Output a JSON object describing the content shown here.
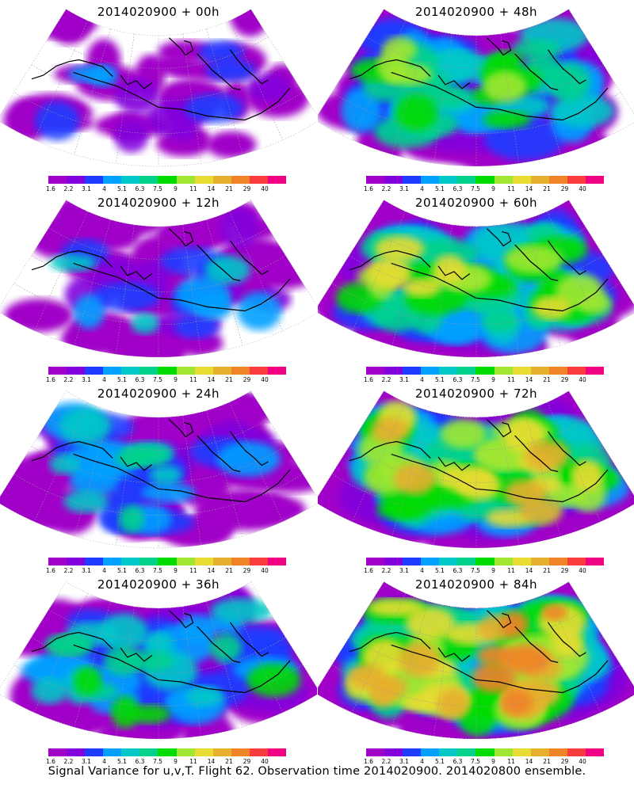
{
  "palette": [
    "#a000c8",
    "#8200dc",
    "#1e3cff",
    "#00a0ff",
    "#00c8c8",
    "#00d28c",
    "#00dc00",
    "#a0e632",
    "#e6dc32",
    "#e6af2d",
    "#f08228",
    "#fa3c3c",
    "#f00082"
  ],
  "colorbar_labels": [
    "1.6",
    "2.2",
    "3.1",
    "4",
    "5.1",
    "6.3",
    "7.5",
    "9",
    "11",
    "14",
    "21",
    "29",
    "40"
  ],
  "panels": [
    {
      "title": "2014020900 + 00h",
      "level": 0
    },
    {
      "title": "2014020900 + 48h",
      "level": 4
    },
    {
      "title": "2014020900 + 12h",
      "level": 1
    },
    {
      "title": "2014020900 + 60h",
      "level": 5
    },
    {
      "title": "2014020900 + 24h",
      "level": 2
    },
    {
      "title": "2014020900 + 72h",
      "level": 6
    },
    {
      "title": "2014020900 + 36h",
      "level": 3
    },
    {
      "title": "2014020900 + 84h",
      "level": 7
    }
  ],
  "caption": "Signal Variance for u,v,T. Flight 62. Observation time 2014020900. 2014020800 ensemble."
}
